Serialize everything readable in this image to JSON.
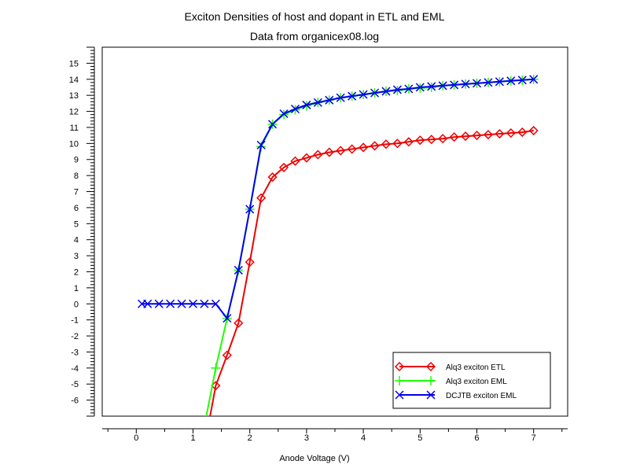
{
  "chart_data": {
    "type": "line",
    "title": "Exciton Densities of host and dopant in ETL and EML",
    "subtitle": "Data from organicex08.log",
    "xlabel": "Anode Voltage (V)",
    "ylabel": "",
    "xlim": [
      -0.6,
      7.6
    ],
    "ylim": [
      -7,
      16
    ],
    "x_ticks": [
      0,
      1,
      2,
      3,
      4,
      5,
      6,
      7
    ],
    "y_ticks": [
      -6,
      -5,
      -4,
      -3,
      -2,
      -1,
      0,
      1,
      2,
      3,
      4,
      5,
      6,
      7,
      8,
      9,
      10,
      11,
      12,
      13,
      14,
      15
    ],
    "legend_position": "bottom-right",
    "series": [
      {
        "name": "Alq3 exciton ETL",
        "color": "#ee0000",
        "marker": "diamond",
        "x": [
          1.2,
          1.4,
          1.6,
          1.8,
          2.0,
          2.2,
          2.4,
          2.6,
          2.8,
          3.0,
          3.2,
          3.4,
          3.6,
          3.8,
          4.0,
          4.2,
          4.4,
          4.6,
          4.8,
          5.0,
          5.2,
          5.4,
          5.6,
          5.8,
          6.0,
          6.2,
          6.4,
          6.6,
          6.8,
          7.0
        ],
        "values": [
          -8.9,
          -5.1,
          -3.2,
          -1.2,
          2.6,
          6.6,
          7.9,
          8.5,
          8.9,
          9.1,
          9.3,
          9.45,
          9.55,
          9.65,
          9.75,
          9.85,
          9.95,
          10.0,
          10.1,
          10.2,
          10.25,
          10.3,
          10.4,
          10.45,
          10.5,
          10.55,
          10.6,
          10.65,
          10.7,
          10.8
        ]
      },
      {
        "name": "Alq3 exciton EML",
        "color": "#22ff00",
        "marker": "plus",
        "x": [
          1.2,
          1.4,
          1.6,
          1.8,
          2.0,
          2.2,
          2.4,
          2.6,
          2.8,
          3.0,
          3.2,
          3.4,
          3.6,
          3.8,
          4.0,
          4.2,
          4.4,
          4.6,
          4.8,
          5.0,
          5.2,
          5.4,
          5.6,
          5.8,
          6.0,
          6.2,
          6.4,
          6.6,
          6.8,
          7.0
        ],
        "values": [
          -7.6,
          -4.0,
          -0.9,
          2.1,
          5.9,
          9.8,
          11.2,
          11.8,
          12.1,
          12.35,
          12.55,
          12.7,
          12.85,
          12.95,
          13.05,
          13.15,
          13.25,
          13.3,
          13.4,
          13.45,
          13.5,
          13.6,
          13.65,
          13.7,
          13.75,
          13.8,
          13.85,
          13.9,
          13.95,
          14.0
        ]
      },
      {
        "name": "DCJTB exciton EML",
        "color": "#0000ee",
        "marker": "x",
        "x": [
          0.1,
          0.2,
          0.4,
          0.6,
          0.8,
          1.0,
          1.2,
          1.4,
          1.6,
          1.8,
          2.0,
          2.2,
          2.4,
          2.6,
          2.8,
          3.0,
          3.2,
          3.4,
          3.6,
          3.8,
          4.0,
          4.2,
          4.4,
          4.6,
          4.8,
          5.0,
          5.2,
          5.4,
          5.6,
          5.8,
          6.0,
          6.2,
          6.4,
          6.6,
          6.8,
          7.0
        ],
        "values": [
          0,
          0,
          0,
          0,
          0,
          0,
          0,
          0,
          -0.9,
          2.1,
          5.9,
          9.9,
          11.2,
          11.85,
          12.15,
          12.4,
          12.55,
          12.7,
          12.85,
          12.95,
          13.05,
          13.15,
          13.25,
          13.35,
          13.4,
          13.5,
          13.55,
          13.6,
          13.65,
          13.7,
          13.75,
          13.8,
          13.85,
          13.9,
          13.95,
          14.0
        ]
      }
    ]
  }
}
